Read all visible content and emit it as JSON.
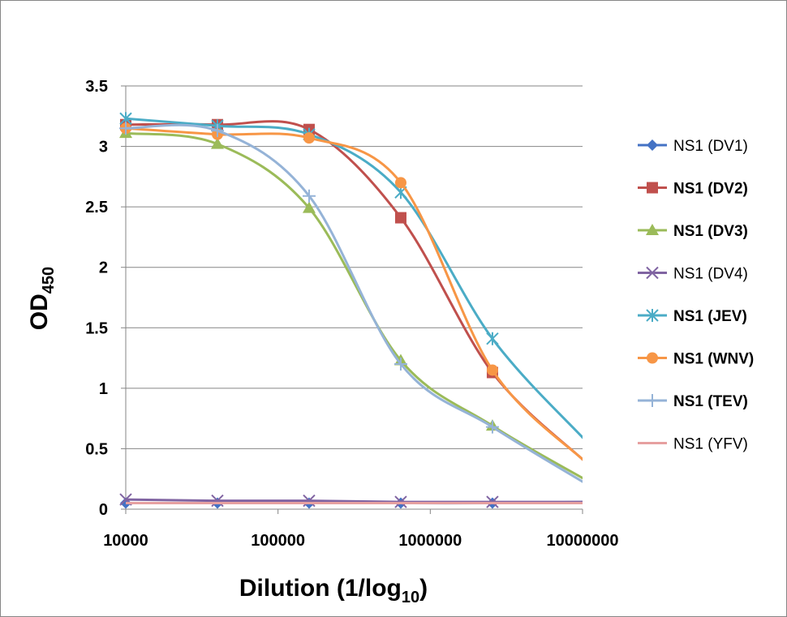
{
  "chart_data": {
    "type": "line",
    "xlabel": "Dilution (1/log",
    "xlabel_sub": "10",
    "xlabel_suffix": ")",
    "ylabel": "OD",
    "ylabel_sub": "450",
    "x_scale": "log",
    "xlim": [
      10000,
      10000000
    ],
    "ylim": [
      0,
      3.5
    ],
    "x_ticks": [
      10000,
      100000,
      1000000,
      10000000
    ],
    "x_tick_labels": [
      "10000",
      "100000",
      "1000000",
      "10000000"
    ],
    "y_ticks": [
      0,
      0.5,
      1,
      1.5,
      2,
      2.5,
      3,
      3.5
    ],
    "y_tick_labels": [
      "0",
      "0.5",
      "1",
      "1.5",
      "2",
      "2.5",
      "3",
      "3.5"
    ],
    "grid": "horizontal",
    "legend_position": "right",
    "x": [
      10000,
      40000,
      160000,
      640000,
      2560000,
      10240000
    ],
    "series": [
      {
        "name": "NS1 (DV1)",
        "color": "#4472C4",
        "marker": "diamond",
        "bold": false,
        "values": [
          0.05,
          0.05,
          0.05,
          0.05,
          0.05,
          0.06
        ]
      },
      {
        "name": "NS1 (DV2)",
        "color": "#C0504D",
        "marker": "square",
        "bold": true,
        "values": [
          3.18,
          3.18,
          3.14,
          2.41,
          1.13,
          0.4
        ]
      },
      {
        "name": "NS1 (DV3)",
        "color": "#9BBB59",
        "marker": "triangle",
        "bold": true,
        "values": [
          3.11,
          3.02,
          2.49,
          1.23,
          0.69,
          0.25
        ]
      },
      {
        "name": "NS1 (DV4)",
        "color": "#8064A2",
        "marker": "x",
        "bold": false,
        "values": [
          0.08,
          0.07,
          0.07,
          0.06,
          0.06,
          0.06
        ]
      },
      {
        "name": "NS1 (JEV)",
        "color": "#4BACC6",
        "marker": "asterisk",
        "bold": true,
        "values": [
          3.23,
          3.17,
          3.1,
          2.62,
          1.41,
          0.58
        ]
      },
      {
        "name": "NS1 (WNV)",
        "color": "#F79646",
        "marker": "circle",
        "bold": true,
        "values": [
          3.15,
          3.1,
          3.07,
          2.7,
          1.15,
          0.4
        ]
      },
      {
        "name": "NS1 (TEV)",
        "color": "#95B3D7",
        "marker": "plus",
        "bold": true,
        "values": [
          3.15,
          3.13,
          2.59,
          1.2,
          0.68,
          0.22
        ]
      },
      {
        "name": "NS1 (YFV)",
        "color": "#E6A0A0",
        "marker": "none",
        "bold": false,
        "values": [
          0.05,
          0.05,
          0.05,
          0.05,
          0.05,
          0.05
        ]
      }
    ]
  }
}
